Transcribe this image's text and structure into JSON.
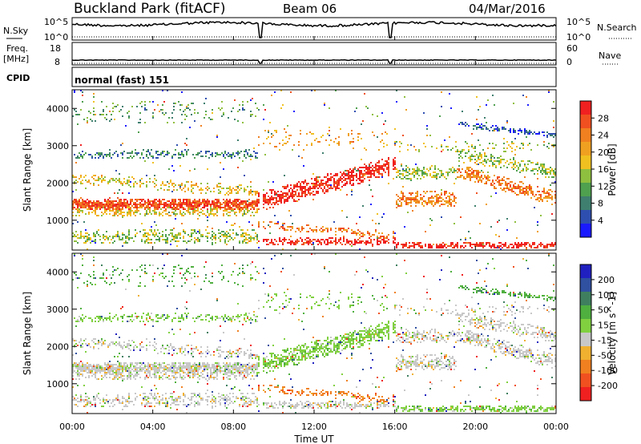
{
  "header": {
    "station": "Buckland Park (fitACF)",
    "beam": "Beam 06",
    "date": "04/Mar/2016"
  },
  "noise_panel": {
    "left_label": "N.Sky",
    "right_label": "N.Search",
    "left_top_tick": "10^5",
    "left_bottom_tick": "10^0",
    "right_top_tick": "10^5",
    "right_bottom_tick": "10^0"
  },
  "freq_panel": {
    "left_label_line1": "Freq.",
    "left_label_line2": "[MHz]",
    "right_label": "Nave",
    "left_top_tick": "18",
    "left_bottom_tick": "8",
    "right_top_tick": "60",
    "right_bottom_tick": "0"
  },
  "cpid_panel": {
    "label": "CPID",
    "text": "normal (fast) 151"
  },
  "colors": {
    "power": [
      "#1a1aff",
      "#2f4fb0",
      "#3f7f6f",
      "#4fa04f",
      "#8fbf3f",
      "#f0c020",
      "#f0a020",
      "#f08020",
      "#f05020",
      "#f02020"
    ],
    "velocity": [
      "#2020c0",
      "#3050a0",
      "#3f7f5f",
      "#4faf3f",
      "#80d040",
      "#c8c8c8",
      "#f0b030",
      "#f08020",
      "#f05020",
      "#f02020"
    ]
  },
  "chart_data": [
    {
      "type": "heatmap",
      "title": "",
      "xlabel": "Time UT",
      "ylabel": "Slant Range [km]",
      "x_ticks": [
        "00:00",
        "04:00",
        "08:00",
        "12:00",
        "16:00",
        "20:00",
        "00:00"
      ],
      "y_ticks": [
        "1000",
        "2000",
        "3000",
        "4000"
      ],
      "ylim": [
        200,
        4500
      ],
      "colorbar_label": "Power [dB]",
      "colorbar_ticks": [
        "4",
        "8",
        "12",
        "16",
        "20",
        "24",
        "28"
      ],
      "colorbar_range": [
        0,
        30
      ]
    },
    {
      "type": "heatmap",
      "title": "",
      "xlabel": "Time UT",
      "ylabel": "Slant Range [km]",
      "x_ticks": [
        "00:00",
        "04:00",
        "08:00",
        "12:00",
        "16:00",
        "20:00",
        "00:00"
      ],
      "y_ticks": [
        "1000",
        "2000",
        "3000",
        "4000"
      ],
      "ylim": [
        200,
        4500
      ],
      "colorbar_label": "Velocity [m s^-1]",
      "colorbar_ticks": [
        "200",
        "100",
        "50",
        "15",
        "-15",
        "-50",
        "-100",
        "-200"
      ],
      "colorbar_range": [
        -250,
        250
      ]
    }
  ]
}
